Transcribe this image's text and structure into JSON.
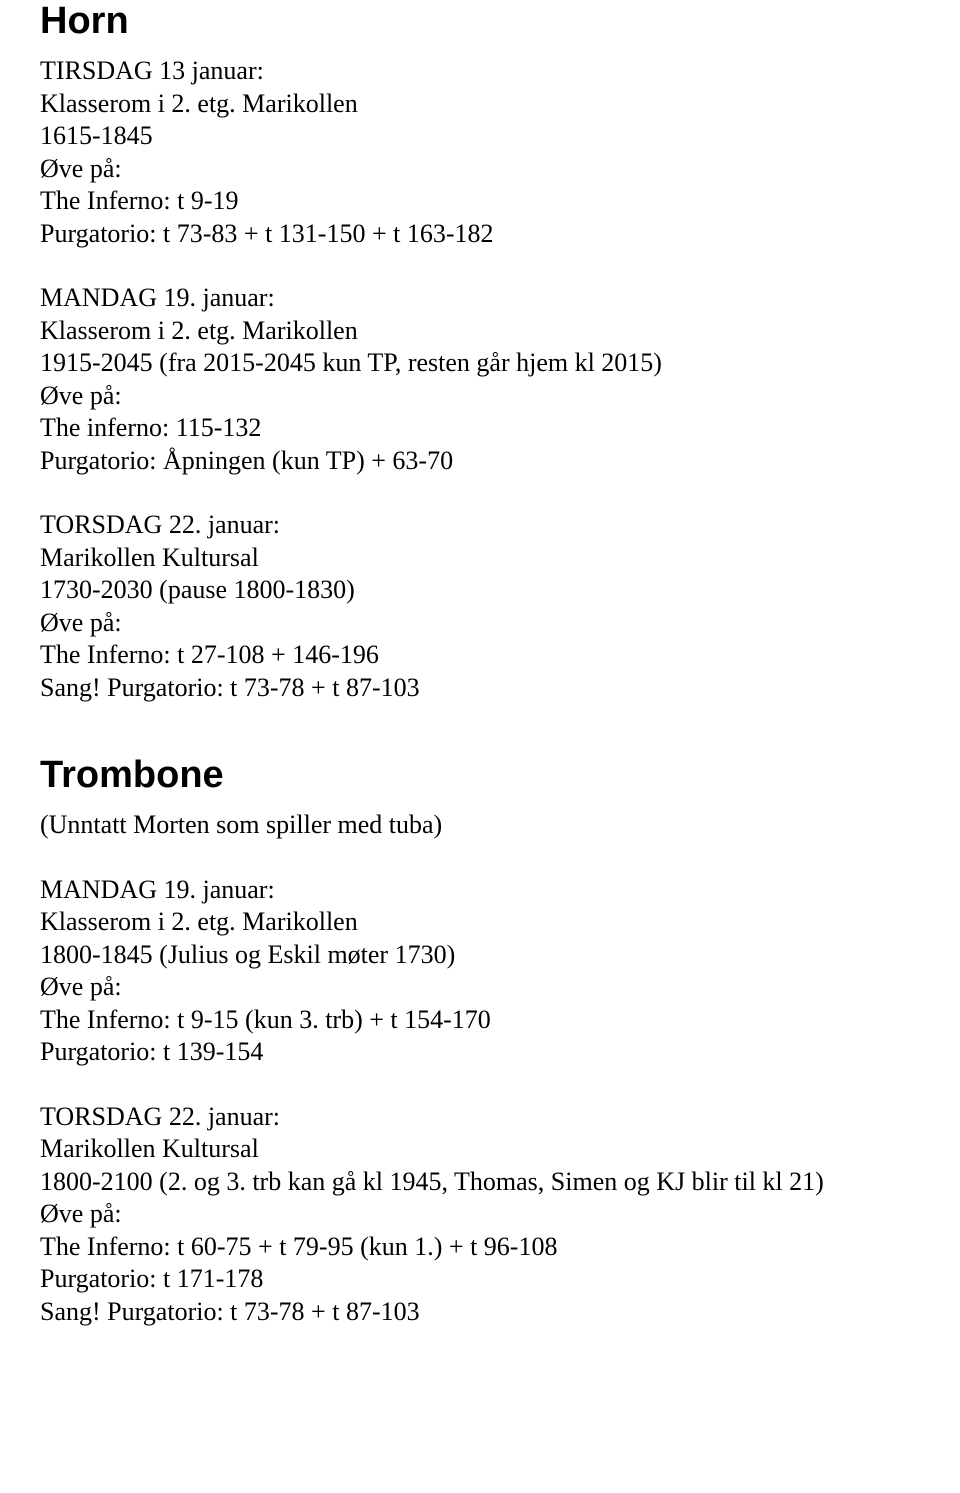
{
  "horn": {
    "title": "Horn",
    "session1": {
      "date": "TIRSDAG 13 januar:",
      "room": "Klasserom i 2. etg. Marikollen",
      "time": "1615-1845",
      "label": "Øve på:",
      "piece1": "The Inferno: t 9-19",
      "piece2": "Purgatorio: t 73-83 + t 131-150 + t 163-182"
    },
    "session2": {
      "date": "MANDAG 19. januar:",
      "room": "Klasserom i 2. etg. Marikollen",
      "time": "1915-2045 (fra 2015-2045 kun TP, resten går hjem kl 2015)",
      "label": "Øve på:",
      "piece1": "The inferno: 115-132",
      "piece2": "Purgatorio: Åpningen (kun TP) + 63-70"
    },
    "session3": {
      "date": "TORSDAG 22. januar:",
      "room": "Marikollen Kultursal",
      "time": "1730-2030 (pause 1800-1830)",
      "label": "Øve på:",
      "piece1": "The Inferno: t 27-108 + 146-196",
      "piece2": "Sang! Purgatorio: t 73-78 + t 87-103"
    }
  },
  "trombone": {
    "title": "Trombone",
    "subtitle": "(Unntatt Morten som spiller med tuba)",
    "session1": {
      "date": "MANDAG 19. januar:",
      "room": "Klasserom i 2. etg. Marikollen",
      "time": "1800-1845 (Julius og Eskil møter 1730)",
      "label": "Øve på:",
      "piece1": "The Inferno: t 9-15 (kun 3. trb) + t 154-170",
      "piece2": "Purgatorio: t 139-154"
    },
    "session2": {
      "date": "TORSDAG 22. januar:",
      "room": "Marikollen Kultursal",
      "time": "1800-2100 (2. og 3. trb kan gå kl 1945, Thomas, Simen og KJ blir til kl 21)",
      "label": "Øve på:",
      "piece1": "The Inferno: t 60-75 + t 79-95 (kun 1.) + t 96-108",
      "piece2": "Purgatorio: t 171-178",
      "piece3": "Sang! Purgatorio: t 73-78 + t 87-103"
    }
  }
}
